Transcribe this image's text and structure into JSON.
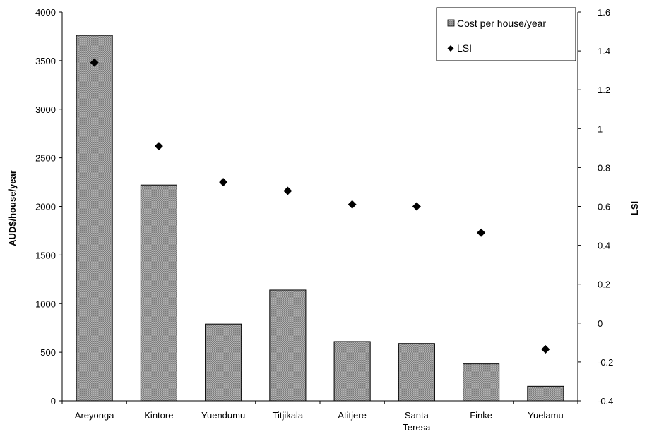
{
  "chart_data": {
    "type": "bar",
    "categories": [
      [
        "Areyonga"
      ],
      [
        "Kintore"
      ],
      [
        "Yuendumu"
      ],
      [
        "Titjikala"
      ],
      [
        "Atitjere"
      ],
      [
        "Santa",
        "Teresa"
      ],
      [
        "Finke"
      ],
      [
        "Yuelamu"
      ]
    ],
    "series": [
      {
        "name": "Cost per house/year",
        "kind": "bar",
        "axis": "left",
        "values": [
          3760,
          2220,
          790,
          1140,
          610,
          590,
          380,
          150
        ]
      },
      {
        "name": "LSI",
        "kind": "scatter",
        "axis": "right",
        "values": [
          1.34,
          0.91,
          0.725,
          0.68,
          0.61,
          0.6,
          0.465,
          -0.135
        ]
      }
    ],
    "ylabel": "AUD$/house/year",
    "y2label": "LSI",
    "ylim": [
      0,
      4000
    ],
    "y2lim": [
      -0.4,
      1.6
    ],
    "yticks": [
      "0",
      "500",
      "1000",
      "1500",
      "2000",
      "2500",
      "3000",
      "3500",
      "4000"
    ],
    "y2ticks": [
      "-0.4",
      "-0.2",
      "0",
      "0.2",
      "0.4",
      "0.6",
      "0.8",
      "1",
      "1.2",
      "1.4",
      "1.6"
    ],
    "grid": false,
    "legend_position": "top-right",
    "colors": {
      "bar_fill": "#a8a8a8",
      "bar_stroke": "#000000",
      "marker": "#000000"
    },
    "marker_symbol": "diamond"
  }
}
